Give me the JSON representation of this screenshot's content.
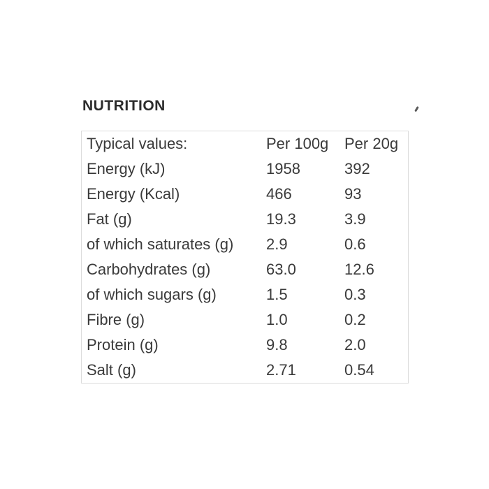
{
  "section": {
    "title": "NUTRITION"
  },
  "icons": {
    "corner_tick": "small diagonal tick-mark artifact"
  },
  "table": {
    "headers": [
      "Typical values:",
      "Per 100g",
      "Per 20g"
    ],
    "rows": [
      {
        "label": "Energy (kJ)",
        "per_100g": "1958",
        "per_20g": "392"
      },
      {
        "label": "Energy (Kcal)",
        "per_100g": "466",
        "per_20g": "93"
      },
      {
        "label": "Fat (g)",
        "per_100g": "19.3",
        "per_20g": "3.9"
      },
      {
        "label": "of which saturates (g)",
        "per_100g": "2.9",
        "per_20g": "0.6"
      },
      {
        "label": "Carbohydrates (g)",
        "per_100g": "63.0",
        "per_20g": "12.6"
      },
      {
        "label": "of which sugars (g)",
        "per_100g": "1.5",
        "per_20g": "0.3"
      },
      {
        "label": "Fibre (g)",
        "per_100g": "1.0",
        "per_20g": "0.2"
      },
      {
        "label": "Protein (g)",
        "per_100g": "9.8",
        "per_20g": "2.0"
      },
      {
        "label": "Salt (g)",
        "per_100g": "2.71",
        "per_20g": "0.54"
      }
    ]
  },
  "colors": {
    "background": "#ffffff",
    "heading_text": "#2b2b2b",
    "body_text": "#3a3a3a",
    "table_border": "#dcdcdc"
  }
}
